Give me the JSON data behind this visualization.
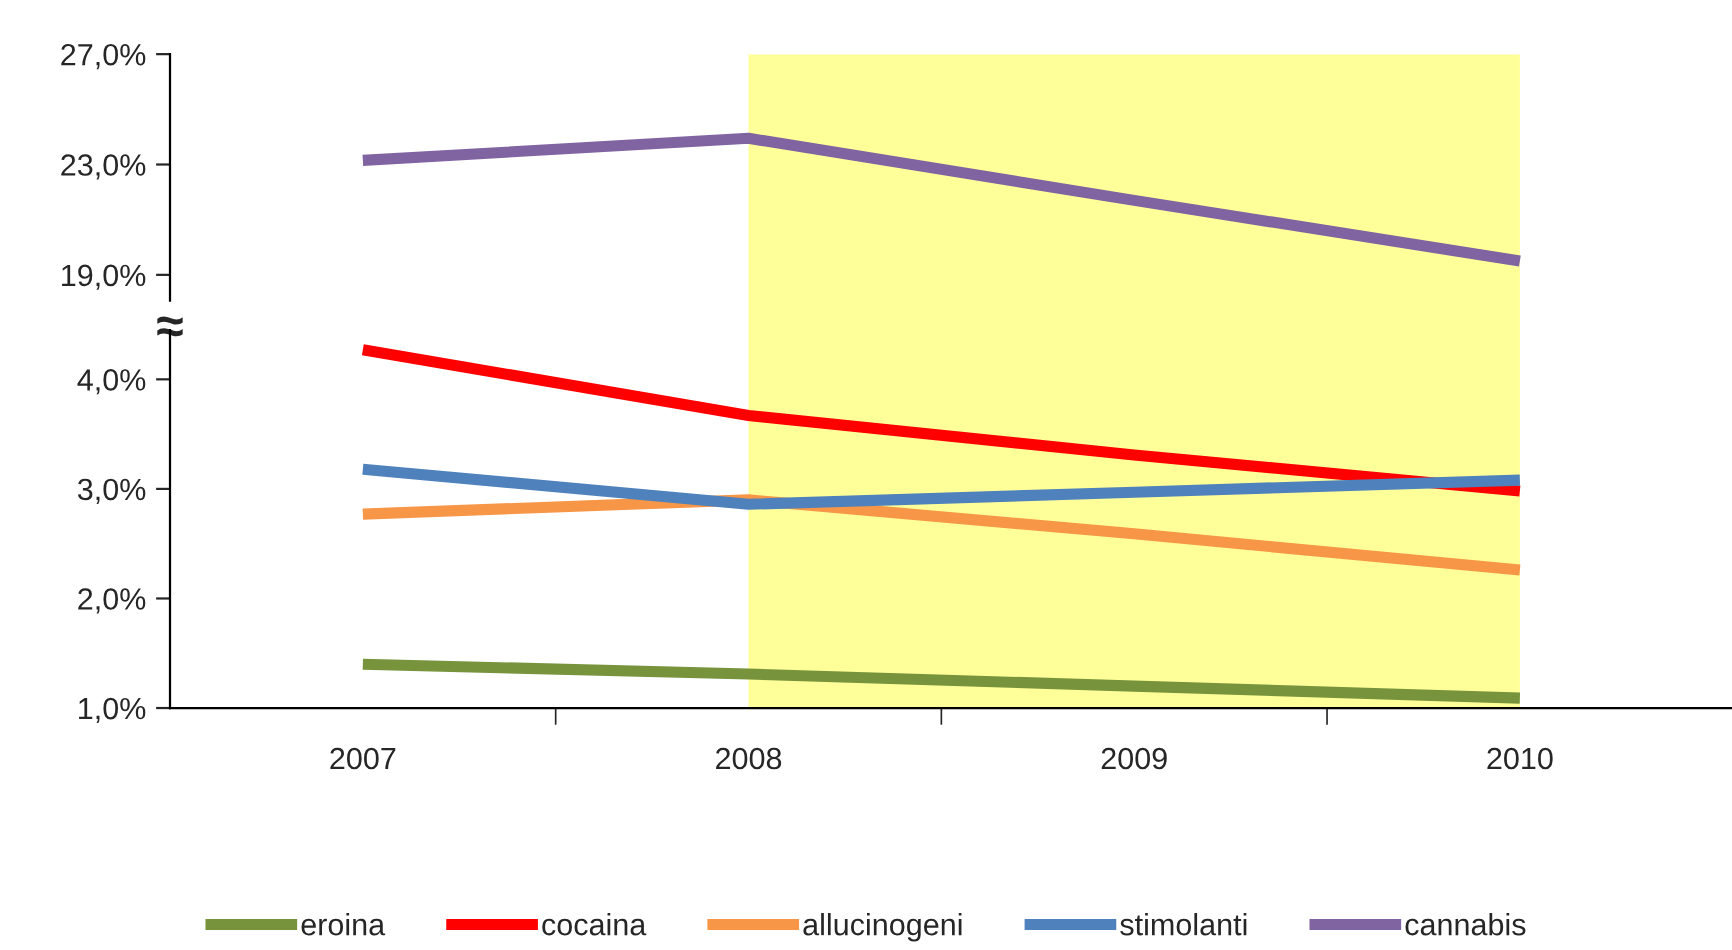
{
  "chart_data": [
    {
      "type": "line",
      "categories": [
        "2007",
        "2008",
        "2009",
        "2010"
      ],
      "ylim": [
        17,
        27
      ],
      "yticks": [
        {
          "value": 19,
          "label": "19,0%"
        },
        {
          "value": 23,
          "label": "23,0%"
        },
        {
          "value": 27,
          "label": "27,0%"
        }
      ],
      "tick_labels": "y",
      "grid": false,
      "legend": "bottom",
      "marker": "none",
      "line_style": "solid",
      "series": [
        {
          "name": "cannabis",
          "color": "#8064a2",
          "values": [
            23.15,
            23.95,
            21.7,
            19.5
          ]
        }
      ],
      "bands": [
        {
          "axis": "x",
          "from": "2008",
          "to": "2010",
          "color": "#ffff99"
        }
      ],
      "annotations": [
        "≈"
      ]
    },
    {
      "type": "line",
      "categories": [
        "2007",
        "2008",
        "2009",
        "2010"
      ],
      "ylim": [
        1,
        4.45
      ],
      "yticks": [
        {
          "value": 1,
          "label": "1,0%"
        },
        {
          "value": 2,
          "label": "2,0%"
        },
        {
          "value": 3,
          "label": "3,0%"
        },
        {
          "value": 4,
          "label": "4,0%"
        }
      ],
      "grid": false,
      "legend": "bottom",
      "marker": "none",
      "line_style": "solid",
      "series": [
        {
          "name": "eroina",
          "color": "#77933c",
          "values": [
            1.4,
            1.31,
            1.2,
            1.09
          ]
        },
        {
          "name": "cocaina",
          "color": "#ff0000",
          "values": [
            4.27,
            3.67,
            3.31,
            2.98
          ]
        },
        {
          "name": "allucinogeni",
          "color": "#f79646",
          "values": [
            2.77,
            2.9,
            2.59,
            2.26
          ]
        },
        {
          "name": "stimolanti",
          "color": "#4f81bd",
          "values": [
            3.18,
            2.86,
            2.97,
            3.08
          ]
        }
      ],
      "bands": [
        {
          "axis": "x",
          "from": "2008",
          "to": "2010",
          "color": "#ffff99"
        }
      ]
    }
  ]
}
